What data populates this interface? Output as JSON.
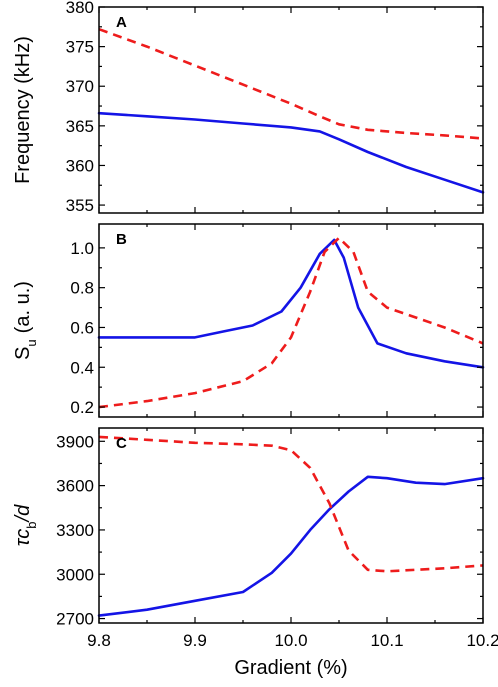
{
  "figure": {
    "xlabel": "Gradient (%)",
    "xticks": [
      "9.8",
      "9.9",
      "10.0",
      "10.1",
      "10.2"
    ],
    "colors": {
      "solid": "#1414e6",
      "dashed": "#ee1c1c",
      "frame": "#000000"
    }
  },
  "chart_data": [
    {
      "type": "line",
      "panel": "A",
      "ylabel": "Frequency (kHz)",
      "xlim": [
        9.8,
        10.2
      ],
      "ylim": [
        354,
        380
      ],
      "yticks": [
        355,
        360,
        365,
        370,
        375,
        380
      ],
      "grid": false,
      "series": [
        {
          "style": "solid",
          "color": "#1414e6",
          "x": [
            9.8,
            9.85,
            9.9,
            9.95,
            10.0,
            10.03,
            10.05,
            10.08,
            10.12,
            10.16,
            10.2
          ],
          "y": [
            366.6,
            366.2,
            365.8,
            365.3,
            364.8,
            364.3,
            363.3,
            361.7,
            359.8,
            358.2,
            356.6
          ]
        },
        {
          "style": "dashed",
          "color": "#ee1c1c",
          "x": [
            9.8,
            9.85,
            9.9,
            9.95,
            10.0,
            10.03,
            10.05,
            10.08,
            10.12,
            10.16,
            10.2
          ],
          "y": [
            377.2,
            375.0,
            372.6,
            370.2,
            367.8,
            366.2,
            365.2,
            364.5,
            364.1,
            363.8,
            363.4
          ]
        }
      ]
    },
    {
      "type": "line",
      "panel": "B",
      "ylabel": "S_u (a. u.)",
      "ylabel_main": "S",
      "ylabel_sub": "u",
      "ylabel_rest": "(a. u.)",
      "xlim": [
        9.8,
        10.2
      ],
      "ylim": [
        0.15,
        1.12
      ],
      "yticks": [
        0.2,
        0.4,
        0.6,
        0.8,
        1.0
      ],
      "ytick_labels": [
        "0.2",
        "0.4",
        "0.6",
        "0.8",
        "1.0"
      ],
      "grid": false,
      "series": [
        {
          "style": "solid",
          "color": "#1414e6",
          "x": [
            9.8,
            9.85,
            9.9,
            9.93,
            9.96,
            9.99,
            10.01,
            10.03,
            10.045,
            10.055,
            10.07,
            10.09,
            10.12,
            10.16,
            10.2
          ],
          "y": [
            0.55,
            0.55,
            0.55,
            0.58,
            0.61,
            0.68,
            0.8,
            0.97,
            1.04,
            0.95,
            0.7,
            0.52,
            0.47,
            0.43,
            0.4
          ]
        },
        {
          "style": "dashed",
          "color": "#ee1c1c",
          "x": [
            9.8,
            9.85,
            9.9,
            9.95,
            9.98,
            10.0,
            10.02,
            10.035,
            10.05,
            10.065,
            10.08,
            10.1,
            10.13,
            10.16,
            10.2
          ],
          "y": [
            0.2,
            0.23,
            0.27,
            0.33,
            0.42,
            0.55,
            0.78,
            0.98,
            1.05,
            0.98,
            0.78,
            0.7,
            0.65,
            0.6,
            0.52
          ]
        }
      ]
    },
    {
      "type": "line",
      "panel": "C",
      "ylabel": "τc_b/d",
      "ylabel_main": "τc",
      "ylabel_sub": "b",
      "ylabel_rest": "/d",
      "xlim": [
        9.8,
        10.2
      ],
      "ylim": [
        2670,
        3990
      ],
      "yticks": [
        2700,
        3000,
        3300,
        3600,
        3900
      ],
      "grid": false,
      "series": [
        {
          "style": "solid",
          "color": "#1414e6",
          "x": [
            9.8,
            9.85,
            9.9,
            9.95,
            9.98,
            10.0,
            10.02,
            10.04,
            10.06,
            10.08,
            10.1,
            10.13,
            10.16,
            10.2
          ],
          "y": [
            2720,
            2760,
            2820,
            2880,
            3010,
            3140,
            3300,
            3440,
            3560,
            3660,
            3650,
            3620,
            3610,
            3650
          ]
        },
        {
          "style": "dashed",
          "color": "#ee1c1c",
          "x": [
            9.8,
            9.85,
            9.9,
            9.95,
            9.98,
            10.0,
            10.02,
            10.04,
            10.06,
            10.08,
            10.1,
            10.13,
            10.16,
            10.2
          ],
          "y": [
            3930,
            3910,
            3890,
            3880,
            3870,
            3840,
            3720,
            3480,
            3160,
            3030,
            3020,
            3030,
            3040,
            3060
          ]
        }
      ]
    }
  ]
}
